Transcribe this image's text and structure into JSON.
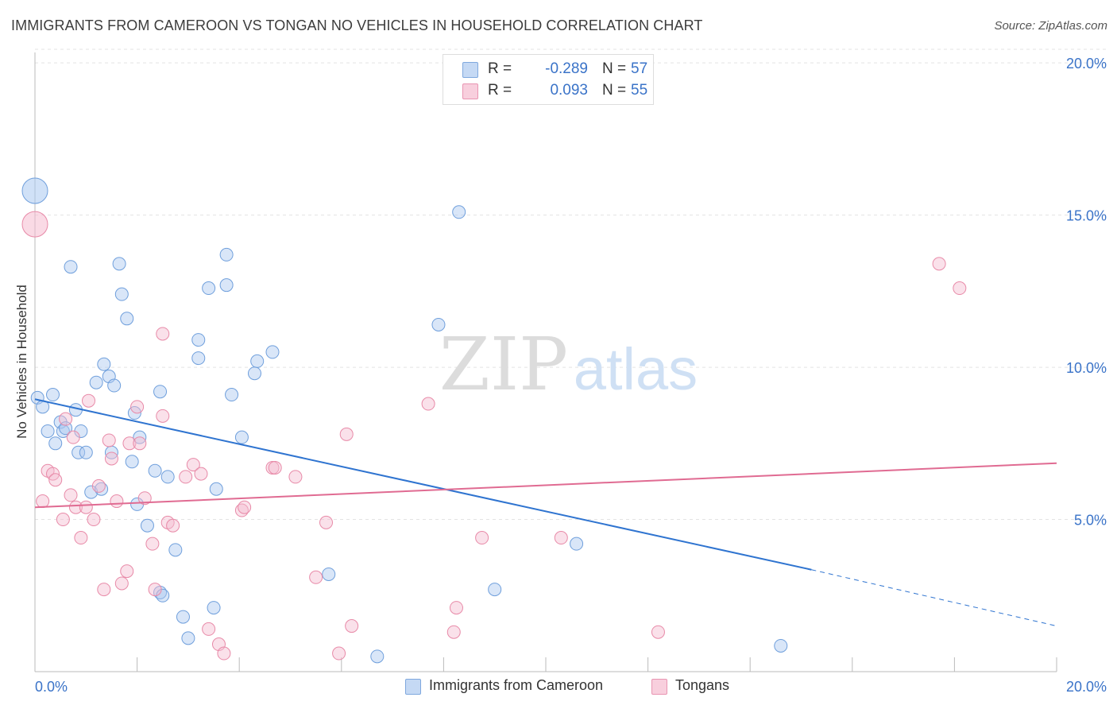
{
  "title": "IMMIGRANTS FROM CAMEROON VS TONGAN NO VEHICLES IN HOUSEHOLD CORRELATION CHART",
  "source": "Source: ZipAtlas.com",
  "watermark": {
    "zip": "ZIP",
    "atlas": "atlas"
  },
  "colors": {
    "blue_fill": "#aac8f0",
    "blue_stroke": "#6f9fdc",
    "blue_line": "#2f74d0",
    "pink_fill": "#f5bcd0",
    "pink_stroke": "#e88aa8",
    "pink_line": "#e06b92",
    "tick_label": "#3a73c8",
    "grid": "#e3e3e3"
  },
  "legend_top": [
    {
      "r_label": "R =",
      "r_value": "-0.289",
      "n_label": "N =",
      "n_value": "57"
    },
    {
      "r_label": "R =",
      "r_value": "0.093",
      "n_label": "N =",
      "n_value": "55"
    }
  ],
  "legend_bottom": [
    "Immigrants from Cameroon",
    "Tongans"
  ],
  "chart_data": {
    "type": "scatter",
    "title": "IMMIGRANTS FROM CAMEROON VS TONGAN NO VEHICLES IN HOUSEHOLD CORRELATION CHART",
    "xlabel": "",
    "ylabel": "No Vehicles in Household",
    "xlim": [
      0,
      20
    ],
    "ylim": [
      0,
      20.5
    ],
    "x_tick_labels": [
      "0.0%",
      "20.0%"
    ],
    "y_ticks": [
      5,
      10,
      15,
      20
    ],
    "y_tick_labels": [
      "5.0%",
      "10.0%",
      "15.0%",
      "20.0%"
    ],
    "grid": true,
    "legend_position": "top-center",
    "series": [
      {
        "name": "Immigrants from Cameroon",
        "color": "#aac8f0",
        "r": -0.289,
        "n": 57,
        "trend": {
          "x0": 0,
          "y0": 8.95,
          "x1": 15.2,
          "y1": 3.35,
          "dashed_to_x": 20,
          "dashed_to_y": 1.5
        },
        "points": [
          [
            0.0,
            15.8,
            3
          ],
          [
            0.05,
            9.0,
            1
          ],
          [
            0.15,
            8.7,
            1
          ],
          [
            0.35,
            9.1,
            1
          ],
          [
            0.25,
            7.9,
            1
          ],
          [
            0.4,
            7.5,
            1
          ],
          [
            0.5,
            8.2,
            1
          ],
          [
            0.55,
            7.9,
            1
          ],
          [
            0.6,
            8.0,
            1
          ],
          [
            0.7,
            13.3,
            1
          ],
          [
            0.8,
            8.6,
            1
          ],
          [
            0.85,
            7.2,
            1
          ],
          [
            0.9,
            7.9,
            1
          ],
          [
            1.0,
            7.2,
            1
          ],
          [
            1.1,
            5.9,
            1
          ],
          [
            1.2,
            9.5,
            1
          ],
          [
            1.3,
            6.0,
            1
          ],
          [
            1.35,
            10.1,
            1
          ],
          [
            1.45,
            9.7,
            1
          ],
          [
            1.5,
            7.2,
            1
          ],
          [
            1.55,
            9.4,
            1
          ],
          [
            1.65,
            13.4,
            1
          ],
          [
            1.7,
            12.4,
            1
          ],
          [
            1.8,
            11.6,
            1
          ],
          [
            1.9,
            6.9,
            1
          ],
          [
            1.95,
            8.5,
            1
          ],
          [
            2.0,
            5.5,
            1
          ],
          [
            2.05,
            7.7,
            1
          ],
          [
            2.2,
            4.8,
            1
          ],
          [
            2.35,
            6.6,
            1
          ],
          [
            2.45,
            9.2,
            1
          ],
          [
            2.45,
            2.6,
            1
          ],
          [
            2.5,
            2.5,
            1
          ],
          [
            2.6,
            6.4,
            1
          ],
          [
            2.75,
            4.0,
            1
          ],
          [
            2.9,
            1.8,
            1
          ],
          [
            3.0,
            1.1,
            1
          ],
          [
            3.2,
            10.9,
            1
          ],
          [
            3.2,
            10.3,
            1
          ],
          [
            3.4,
            12.6,
            1
          ],
          [
            3.5,
            2.1,
            1
          ],
          [
            3.55,
            6.0,
            1
          ],
          [
            3.75,
            12.7,
            1
          ],
          [
            3.75,
            13.7,
            1
          ],
          [
            3.85,
            9.1,
            1
          ],
          [
            4.05,
            7.7,
            1
          ],
          [
            4.3,
            9.8,
            1
          ],
          [
            4.35,
            10.2,
            1
          ],
          [
            4.65,
            10.5,
            1
          ],
          [
            5.75,
            3.2,
            1
          ],
          [
            6.7,
            0.5,
            1
          ],
          [
            7.9,
            11.4,
            1
          ],
          [
            8.3,
            15.1,
            1
          ],
          [
            9.0,
            2.7,
            1
          ],
          [
            10.6,
            4.2,
            1
          ],
          [
            14.6,
            0.85,
            1
          ]
        ]
      },
      {
        "name": "Tongans",
        "color": "#f5bcd0",
        "r": 0.093,
        "n": 55,
        "trend": {
          "x0": 0,
          "y0": 5.4,
          "x1": 20,
          "y1": 6.85
        },
        "points": [
          [
            0.0,
            14.7,
            3
          ],
          [
            0.15,
            5.6,
            1
          ],
          [
            0.25,
            6.6,
            1
          ],
          [
            0.35,
            6.5,
            1
          ],
          [
            0.4,
            6.3,
            1
          ],
          [
            0.55,
            5.0,
            1
          ],
          [
            0.6,
            8.3,
            1
          ],
          [
            0.7,
            5.8,
            1
          ],
          [
            0.75,
            7.7,
            1
          ],
          [
            0.8,
            5.4,
            1
          ],
          [
            0.9,
            4.4,
            1
          ],
          [
            1.0,
            5.4,
            1
          ],
          [
            1.05,
            8.9,
            1
          ],
          [
            1.15,
            5.0,
            1
          ],
          [
            1.25,
            6.1,
            1
          ],
          [
            1.35,
            2.7,
            1
          ],
          [
            1.45,
            7.6,
            1
          ],
          [
            1.5,
            7.0,
            1
          ],
          [
            1.6,
            5.6,
            1
          ],
          [
            1.7,
            2.9,
            1
          ],
          [
            1.8,
            3.3,
            1
          ],
          [
            1.85,
            7.5,
            1
          ],
          [
            2.0,
            8.7,
            1
          ],
          [
            2.05,
            7.5,
            1
          ],
          [
            2.15,
            5.7,
            1
          ],
          [
            2.3,
            4.2,
            1
          ],
          [
            2.35,
            2.7,
            1
          ],
          [
            2.5,
            11.1,
            1
          ],
          [
            2.5,
            8.4,
            1
          ],
          [
            2.6,
            4.9,
            1
          ],
          [
            2.7,
            4.8,
            1
          ],
          [
            2.95,
            6.4,
            1
          ],
          [
            3.1,
            6.8,
            1
          ],
          [
            3.25,
            6.5,
            1
          ],
          [
            3.4,
            1.4,
            1
          ],
          [
            3.6,
            0.9,
            1
          ],
          [
            3.7,
            0.6,
            1
          ],
          [
            4.05,
            5.3,
            1
          ],
          [
            4.1,
            5.4,
            1
          ],
          [
            4.65,
            6.7,
            1
          ],
          [
            4.7,
            6.7,
            1
          ],
          [
            5.1,
            6.4,
            1
          ],
          [
            5.5,
            3.1,
            1
          ],
          [
            5.7,
            4.9,
            1
          ],
          [
            5.95,
            0.6,
            1
          ],
          [
            6.1,
            7.8,
            1
          ],
          [
            6.2,
            1.5,
            1
          ],
          [
            7.7,
            8.8,
            1
          ],
          [
            8.2,
            1.3,
            1
          ],
          [
            8.25,
            2.1,
            1
          ],
          [
            8.75,
            4.4,
            1
          ],
          [
            10.3,
            4.4,
            1
          ],
          [
            12.2,
            1.3,
            1
          ],
          [
            17.7,
            13.4,
            1
          ],
          [
            18.1,
            12.6,
            1
          ]
        ]
      }
    ]
  }
}
